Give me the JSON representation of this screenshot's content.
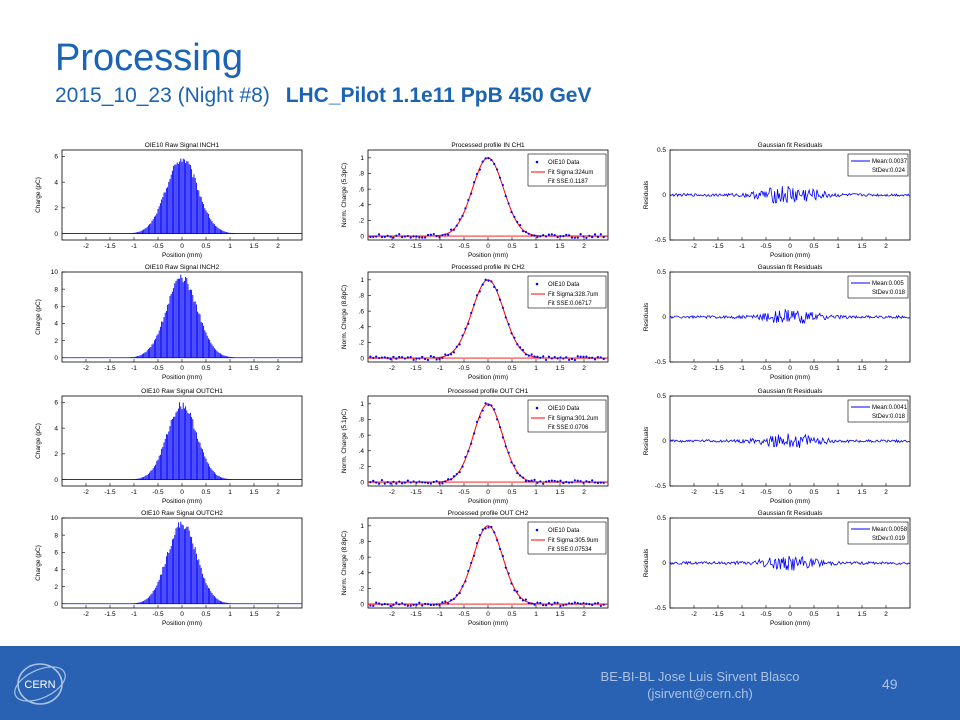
{
  "slide": {
    "title": "Processing",
    "subtitle_date": "2015_10_23  (Night #8)",
    "subtitle_beam": "LHC_Pilot 1.1e11 PpB  450 GeV"
  },
  "footer": {
    "line1": "BE-BI-BL Jose Luis Sirvent Blasco",
    "line2": "(jsirvent@cern.ch)",
    "page_number": "49",
    "logo_text": "CERN",
    "background_color": "#2a62b3"
  },
  "chart_data": [
    {
      "type": "bar",
      "title": "OIE10 Raw Signal INCH1",
      "xlabel": "Position (mm)",
      "ylabel": "Charge (pC)",
      "xlim": [
        -2.5,
        2.5
      ],
      "ylim": [
        -0.5,
        6.5
      ],
      "xticks": [
        -2,
        -1.5,
        -1,
        -0.5,
        0,
        0.5,
        1,
        1.5,
        2
      ],
      "yticks": [
        0,
        2,
        4,
        6
      ],
      "gaussian": {
        "amplitude": 5.8,
        "sigma": 0.33
      },
      "color": "#0000ff"
    },
    {
      "type": "scatter",
      "title": "Processed profile IN CH1",
      "xlabel": "Position (mm)",
      "ylabel": "Norm. Charge (5.3pC)",
      "xlim": [
        -2.5,
        2.5
      ],
      "ylim": [
        -0.05,
        1.1
      ],
      "xticks": [
        -2,
        -1.5,
        -1,
        -0.5,
        0,
        0.5,
        1,
        1.5,
        2
      ],
      "yticks": [
        0,
        0.2,
        0.4,
        0.6,
        0.8,
        1
      ],
      "fit": {
        "sigma_mm": 0.324
      },
      "series": [
        {
          "name": "OIE10 Data",
          "color": "#0000ff"
        },
        {
          "name": "Fit Sigma:324um",
          "color": "#ff0000"
        },
        {
          "name": "Fit SSE:0.1187",
          "color": "#ff0000"
        }
      ]
    },
    {
      "type": "line",
      "title": "Gaussian fit Residuals",
      "xlabel": "Position (mm)",
      "ylabel": "Residuals",
      "xlim": [
        -2.5,
        2.5
      ],
      "ylim": [
        -0.5,
        0.5
      ],
      "xticks": [
        -2,
        -1.5,
        -1,
        -0.5,
        0,
        0.5,
        1,
        1.5,
        2
      ],
      "yticks": [
        -0.5,
        0,
        0.5
      ],
      "ytick_labels": [
        "-0.5",
        "0",
        "0.5"
      ],
      "noise_amp": 0.1,
      "series": [
        {
          "name": "Mean:0.0037",
          "color": "#0000ff"
        },
        {
          "name": "StDev:0.024",
          "color": "#0000ff"
        }
      ]
    },
    {
      "type": "bar",
      "title": "OIE10 Raw Signal INCH2",
      "xlabel": "Position (mm)",
      "ylabel": "Charge (pC)",
      "xlim": [
        -2.5,
        2.5
      ],
      "ylim": [
        -0.5,
        10
      ],
      "xticks": [
        -2,
        -1.5,
        -1,
        -0.5,
        0,
        0.5,
        1,
        1.5,
        2
      ],
      "yticks": [
        0,
        2,
        4,
        6,
        8,
        10
      ],
      "gaussian": {
        "amplitude": 9.2,
        "sigma": 0.33
      },
      "color": "#0000ff"
    },
    {
      "type": "scatter",
      "title": "Processed profile IN CH2",
      "xlabel": "Position (mm)",
      "ylabel": "Norm. Charge (8.8pC)",
      "xlim": [
        -2.5,
        2.5
      ],
      "ylim": [
        -0.05,
        1.1
      ],
      "xticks": [
        -2,
        -1.5,
        -1,
        -0.5,
        0,
        0.5,
        1,
        1.5,
        2
      ],
      "yticks": [
        0,
        0.2,
        0.4,
        0.6,
        0.8,
        1
      ],
      "fit": {
        "sigma_mm": 0.3287
      },
      "series": [
        {
          "name": "OIE10 Data",
          "color": "#0000ff"
        },
        {
          "name": "Fit Sigma:328.7um",
          "color": "#ff0000"
        },
        {
          "name": "Fit SSE:0.06717",
          "color": "#ff0000"
        }
      ]
    },
    {
      "type": "line",
      "title": "Gaussian fit Residuals",
      "xlabel": "Position (mm)",
      "ylabel": "Residuals",
      "xlim": [
        -2.5,
        2.5
      ],
      "ylim": [
        -0.5,
        0.5
      ],
      "xticks": [
        -2,
        -1.5,
        -1,
        -0.5,
        0,
        0.5,
        1,
        1.5,
        2
      ],
      "yticks": [
        -0.5,
        0,
        0.5
      ],
      "ytick_labels": [
        "-0.5",
        "0",
        "0.5"
      ],
      "noise_amp": 0.07,
      "series": [
        {
          "name": "Mean:0.005",
          "color": "#0000ff"
        },
        {
          "name": "StDev:0.018",
          "color": "#0000ff"
        }
      ]
    },
    {
      "type": "bar",
      "title": "OIE10 Raw Signal OUTCH1",
      "xlabel": "Position (mm)",
      "ylabel": "Charge (pC)",
      "xlim": [
        -2.5,
        2.5
      ],
      "ylim": [
        -0.5,
        6.5
      ],
      "xticks": [
        -2,
        -1.5,
        -1,
        -0.5,
        0,
        0.5,
        1,
        1.5,
        2
      ],
      "yticks": [
        0,
        2,
        4,
        6
      ],
      "gaussian": {
        "amplitude": 5.8,
        "sigma": 0.31
      },
      "color": "#0000ff"
    },
    {
      "type": "scatter",
      "title": "Processed profile OUT CH1",
      "xlabel": "Position (mm)",
      "ylabel": "Norm. Charge (5.1pC)",
      "xlim": [
        -2.5,
        2.5
      ],
      "ylim": [
        -0.05,
        1.1
      ],
      "xticks": [
        -2,
        -1.5,
        -1,
        -0.5,
        0,
        0.5,
        1,
        1.5,
        2
      ],
      "yticks": [
        0,
        0.2,
        0.4,
        0.6,
        0.8,
        1
      ],
      "fit": {
        "sigma_mm": 0.3012
      },
      "series": [
        {
          "name": "OIE10 Data",
          "color": "#0000ff"
        },
        {
          "name": "Fit Sigma:301.2um",
          "color": "#ff0000"
        },
        {
          "name": "Fit SSE:0.0706",
          "color": "#ff0000"
        }
      ]
    },
    {
      "type": "line",
      "title": "Gaussian fit Residuals",
      "xlabel": "Position (mm)",
      "ylabel": "Residuals",
      "xlim": [
        -2.5,
        2.5
      ],
      "ylim": [
        -0.5,
        0.5
      ],
      "xticks": [
        -2,
        -1.5,
        -1,
        -0.5,
        0,
        0.5,
        1,
        1.5,
        2
      ],
      "yticks": [
        -0.5,
        0,
        0.5
      ],
      "ytick_labels": [
        "-0.5",
        "0",
        "0.5"
      ],
      "noise_amp": 0.07,
      "series": [
        {
          "name": "Mean:0.0041",
          "color": "#0000ff"
        },
        {
          "name": "StDev:0.018",
          "color": "#0000ff"
        }
      ]
    },
    {
      "type": "bar",
      "title": "OIE10 Raw Signal OUTCH2",
      "xlabel": "Position (mm)",
      "ylabel": "Charge (pC)",
      "xlim": [
        -2.5,
        2.5
      ],
      "ylim": [
        -0.5,
        10
      ],
      "xticks": [
        -2,
        -1.5,
        -1,
        -0.5,
        0,
        0.5,
        1,
        1.5,
        2
      ],
      "yticks": [
        0,
        2,
        4,
        6,
        8,
        10
      ],
      "gaussian": {
        "amplitude": 9.3,
        "sigma": 0.31
      },
      "color": "#0000ff"
    },
    {
      "type": "scatter",
      "title": "Processed profile OUT CH2",
      "xlabel": "Position (mm)",
      "ylabel": "Norm. Charge (8.8pC)",
      "xlim": [
        -2.5,
        2.5
      ],
      "ylim": [
        -0.05,
        1.1
      ],
      "xticks": [
        -2,
        -1.5,
        -1,
        -0.5,
        0,
        0.5,
        1,
        1.5,
        2
      ],
      "yticks": [
        0,
        0.2,
        0.4,
        0.6,
        0.8,
        1
      ],
      "fit": {
        "sigma_mm": 0.3059
      },
      "series": [
        {
          "name": "OIE10 Data",
          "color": "#0000ff"
        },
        {
          "name": "Fit Sigma:305.9um",
          "color": "#ff0000"
        },
        {
          "name": "Fit SSE:0.07534",
          "color": "#ff0000"
        }
      ]
    },
    {
      "type": "line",
      "title": "Gaussian fit Residuals",
      "xlabel": "Position (mm)",
      "ylabel": "Residuals",
      "xlim": [
        -2.5,
        2.5
      ],
      "ylim": [
        -0.5,
        0.5
      ],
      "xticks": [
        -2,
        -1.5,
        -1,
        -0.5,
        0,
        0.5,
        1,
        1.5,
        2
      ],
      "yticks": [
        -0.5,
        0,
        0.5
      ],
      "ytick_labels": [
        "-0.5",
        "0",
        "0.5"
      ],
      "noise_amp": 0.07,
      "series": [
        {
          "name": "Mean:0.0058",
          "color": "#0000ff"
        },
        {
          "name": "StDev:0.019",
          "color": "#0000ff"
        }
      ]
    }
  ]
}
